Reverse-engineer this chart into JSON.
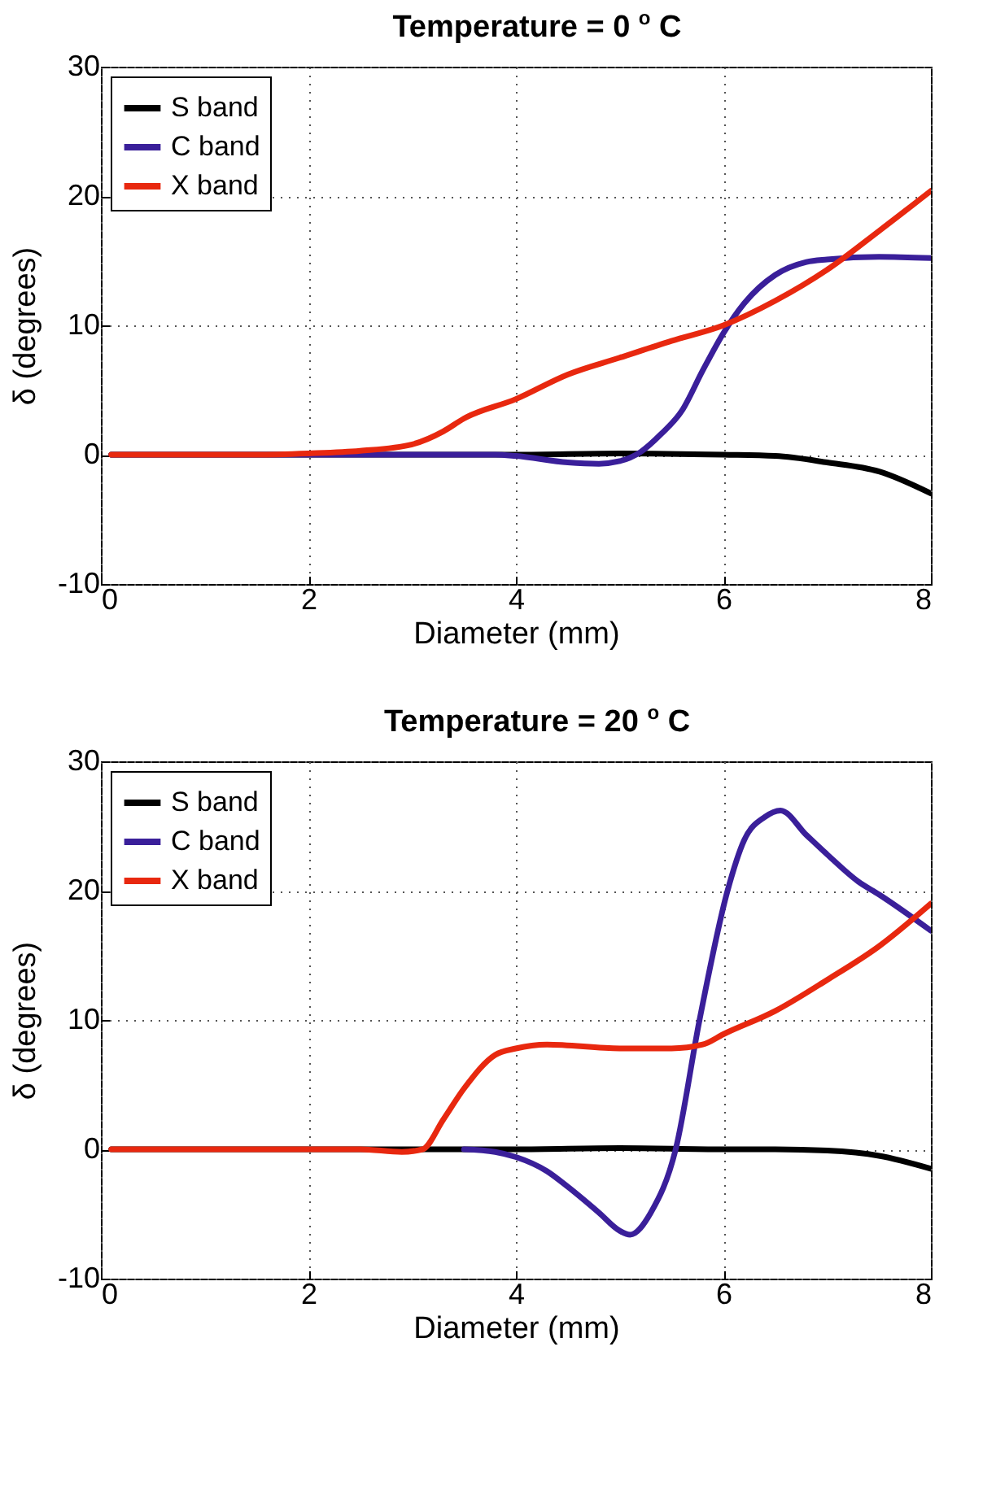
{
  "chart_data": [
    {
      "type": "line",
      "title": "Temperature = 0 $^{o}$ C",
      "xlabel": "Diameter (mm)",
      "ylabel": "δ (degrees)",
      "xlim": [
        0,
        8
      ],
      "ylim": [
        -10,
        30
      ],
      "xticks": [
        0,
        2,
        4,
        6,
        8
      ],
      "yticks": [
        -10,
        0,
        10,
        20,
        30
      ],
      "grid": true,
      "legend": "top left",
      "marker": "none",
      "line_style": "solid",
      "series": [
        {
          "name": "S band",
          "color": "#000000",
          "x": [
            0.1,
            1,
            2,
            3,
            4,
            5,
            6,
            6.5,
            7,
            7.5,
            8
          ],
          "values": [
            0,
            0,
            0,
            0,
            0,
            0.1,
            0,
            -0.1,
            -0.6,
            -1.3,
            -3
          ]
        },
        {
          "name": "C band",
          "color": "#3a1f9a",
          "x": [
            0.1,
            1,
            2,
            3,
            3.8,
            4,
            4.5,
            4.8,
            5,
            5.2,
            5.4,
            5.6,
            5.8,
            6,
            6.2,
            6.5,
            6.8,
            7,
            7.5,
            8
          ],
          "values": [
            0,
            0,
            0,
            0,
            0,
            -0.1,
            -0.6,
            -0.7,
            -0.5,
            0.2,
            1.6,
            3.4,
            6.5,
            9.4,
            11.7,
            13.9,
            14.9,
            15.1,
            15.3,
            15.2
          ]
        },
        {
          "name": "X band",
          "color": "#e8280f",
          "x": [
            0.1,
            1,
            1.5,
            2,
            2.5,
            3,
            3.3,
            3.5,
            4,
            4.5,
            5,
            5.5,
            6,
            6.5,
            7,
            7.5,
            8
          ],
          "values": [
            0,
            0,
            0,
            0.1,
            0.3,
            0.8,
            1.8,
            2.8,
            4.3,
            6.2,
            7.5,
            8.8,
            10,
            11.9,
            14.3,
            17.3,
            20.4
          ]
        }
      ]
    },
    {
      "type": "line",
      "title": "Temperature = 20 $^{o}$ C",
      "xlabel": "Diameter (mm)",
      "ylabel": "δ (degrees)",
      "xlim": [
        0,
        8
      ],
      "ylim": [
        -10,
        30
      ],
      "xticks": [
        0,
        2,
        4,
        6,
        8
      ],
      "yticks": [
        -10,
        0,
        10,
        20,
        30
      ],
      "grid": true,
      "legend": "top left",
      "marker": "none",
      "line_style": "solid",
      "series": [
        {
          "name": "S band",
          "color": "#000000",
          "x": [
            0.1,
            1,
            2,
            3,
            4,
            5,
            6,
            6.5,
            7,
            7.5,
            8
          ],
          "values": [
            0,
            0,
            0,
            0,
            0,
            0.1,
            0,
            0,
            -0.1,
            -0.5,
            -1.5
          ]
        },
        {
          "name": "C band",
          "color": "#3a1f9a",
          "x": [
            3.5,
            3.8,
            4,
            4.3,
            4.5,
            4.8,
            5,
            5.1,
            5.3,
            5.54,
            5.77,
            6.04,
            6.2,
            6.4,
            6.55,
            6.8,
            7,
            7.3,
            7.5,
            8
          ],
          "values": [
            0,
            -0.2,
            -0.6,
            -1.7,
            -2.9,
            -4.9,
            -6.3,
            -6.6,
            -4.9,
            0,
            10,
            20,
            23.9,
            25.7,
            26.2,
            24.3,
            22.8,
            20.7,
            19.7,
            16.9
          ]
        },
        {
          "name": "X band",
          "color": "#e8280f",
          "x": [
            0.1,
            1,
            2,
            2.5,
            2.9,
            3.1,
            3.3,
            3.5,
            3.8,
            4,
            4.3,
            5,
            5.5,
            5.8,
            6,
            6.5,
            7,
            7.5,
            8
          ],
          "values": [
            0,
            0,
            0,
            0,
            -0.2,
            0,
            2.3,
            4.7,
            7.3,
            7.8,
            8.1,
            7.8,
            7.8,
            8.1,
            8.9,
            10.7,
            13.1,
            15.7,
            19
          ]
        }
      ]
    }
  ]
}
